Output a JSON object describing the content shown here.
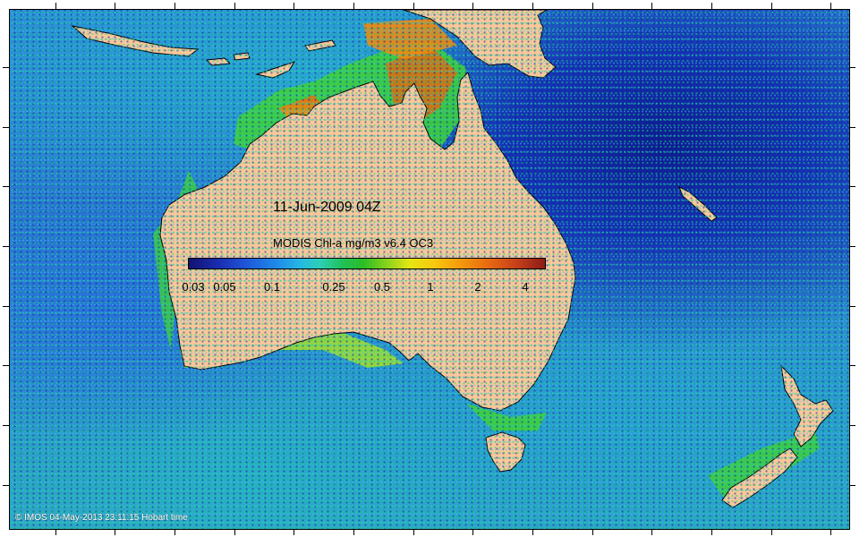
{
  "map": {
    "date_title": "11-Jun-2009 04Z",
    "colorbar_title": "MODIS Chl-a mg/m3 v6.4 OC3",
    "colorbar_labels": [
      "0.03",
      "0.05",
      "0.1",
      "0.25",
      "0.5",
      "1",
      "2",
      "4"
    ],
    "colorbar_values": [
      0.03,
      0.05,
      0.1,
      0.25,
      0.5,
      1,
      2,
      4
    ],
    "colorbar_scale": "log",
    "copyright": "© IMOS 04-May-2013 23:11:15 Hobart time",
    "colors": {
      "land": "#f9c79a",
      "coast_outline": "#000000",
      "low_chl": "#12126e",
      "mid_chl": "#20c25a",
      "high_chl": "#8c1b16"
    },
    "regions": [
      "Australia",
      "New Zealand",
      "Tasmania",
      "New Guinea",
      "Indonesia"
    ]
  }
}
